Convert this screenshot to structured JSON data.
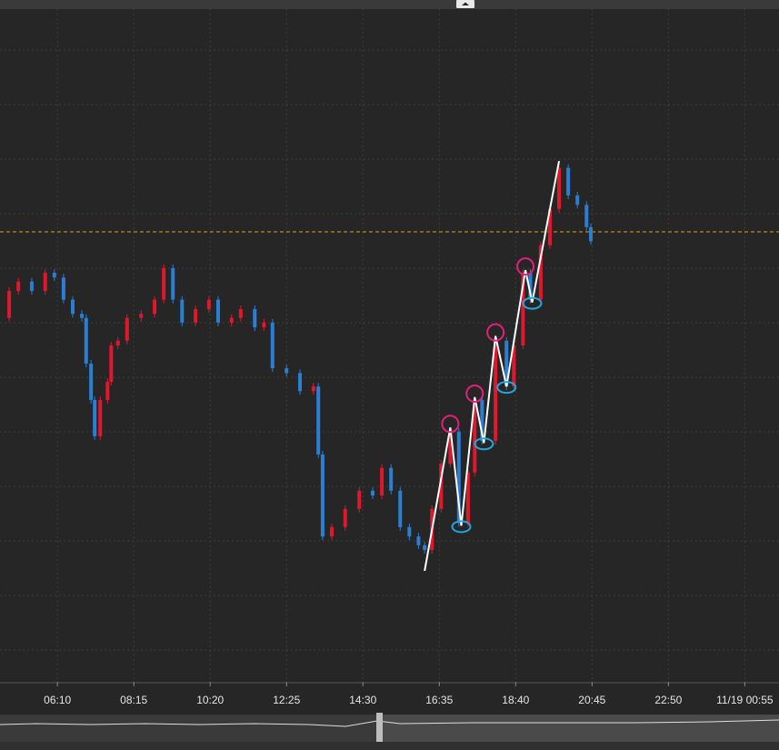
{
  "chart_data": {
    "type": "candlestick",
    "xlim": [
      276,
      1551
    ],
    "ylim": [
      0,
      100
    ],
    "xticks": [
      {
        "value": 370,
        "label": "06:10"
      },
      {
        "value": 495,
        "label": "08:15"
      },
      {
        "value": 620,
        "label": "10:20"
      },
      {
        "value": 745,
        "label": "12:25"
      },
      {
        "value": 870,
        "label": "14:30"
      },
      {
        "value": 995,
        "label": "16:35"
      },
      {
        "value": 1120,
        "label": "18:40"
      },
      {
        "value": 1245,
        "label": "20:45"
      },
      {
        "value": 1370,
        "label": "22:50"
      },
      {
        "value": 1495,
        "label": "11/19 00:55"
      }
    ],
    "grid": true,
    "up_color": "#e0182e",
    "down_color": "#2a7fd4",
    "x": [
      276,
      291,
      306,
      328,
      350,
      365,
      380,
      395,
      410,
      417,
      425,
      431,
      440,
      452,
      458,
      469,
      484,
      507,
      529,
      544,
      559,
      574,
      596,
      618,
      633,
      655,
      670,
      693,
      708,
      722,
      745,
      767,
      789,
      797,
      804,
      819,
      841,
      864,
      886,
      901,
      916,
      931,
      946,
      961,
      971,
      983,
      998,
      1013,
      1027,
      1042,
      1053,
      1065,
      1087,
      1105,
      1117,
      1132,
      1144,
      1161,
      1176,
      1191,
      1206,
      1221,
      1236,
      1243
    ],
    "values": [
      54.1,
      58.1,
      59.5,
      58.1,
      60.8,
      60.1,
      56.8,
      54.7,
      54.1,
      47.3,
      41.9,
      36.5,
      41.9,
      44.6,
      50.0,
      50.7,
      54.1,
      54.7,
      56.8,
      61.5,
      56.8,
      53.4,
      55.4,
      56.8,
      53.4,
      54.1,
      55.4,
      52.7,
      53.4,
      46.6,
      45.9,
      43.2,
      43.9,
      33.8,
      21.6,
      23.0,
      25.7,
      28.4,
      27.7,
      31.8,
      28.4,
      23.0,
      21.6,
      20.3,
      19.6,
      25.7,
      32.4,
      37.2,
      23.6,
      31.1,
      41.9,
      35.8,
      50.7,
      43.9,
      50.0,
      60.8,
      56.8,
      64.9,
      70.3,
      76.4,
      72.3,
      70.9,
      67.6,
      65.5
    ],
    "zigzag": {
      "color": "#ffffff",
      "high_color": "#e0207a",
      "low_color": "#1fa8e0",
      "x": [
        971,
        1013,
        1031,
        1053,
        1068,
        1087,
        1105,
        1136,
        1147,
        1191
      ],
      "values": [
        16.5,
        37.8,
        23.2,
        42.3,
        35.5,
        51.4,
        43.9,
        61.2,
        56.4,
        77.4
      ]
    },
    "reference_line": {
      "value": 66.9,
      "color": "#e0a020"
    }
  }
}
